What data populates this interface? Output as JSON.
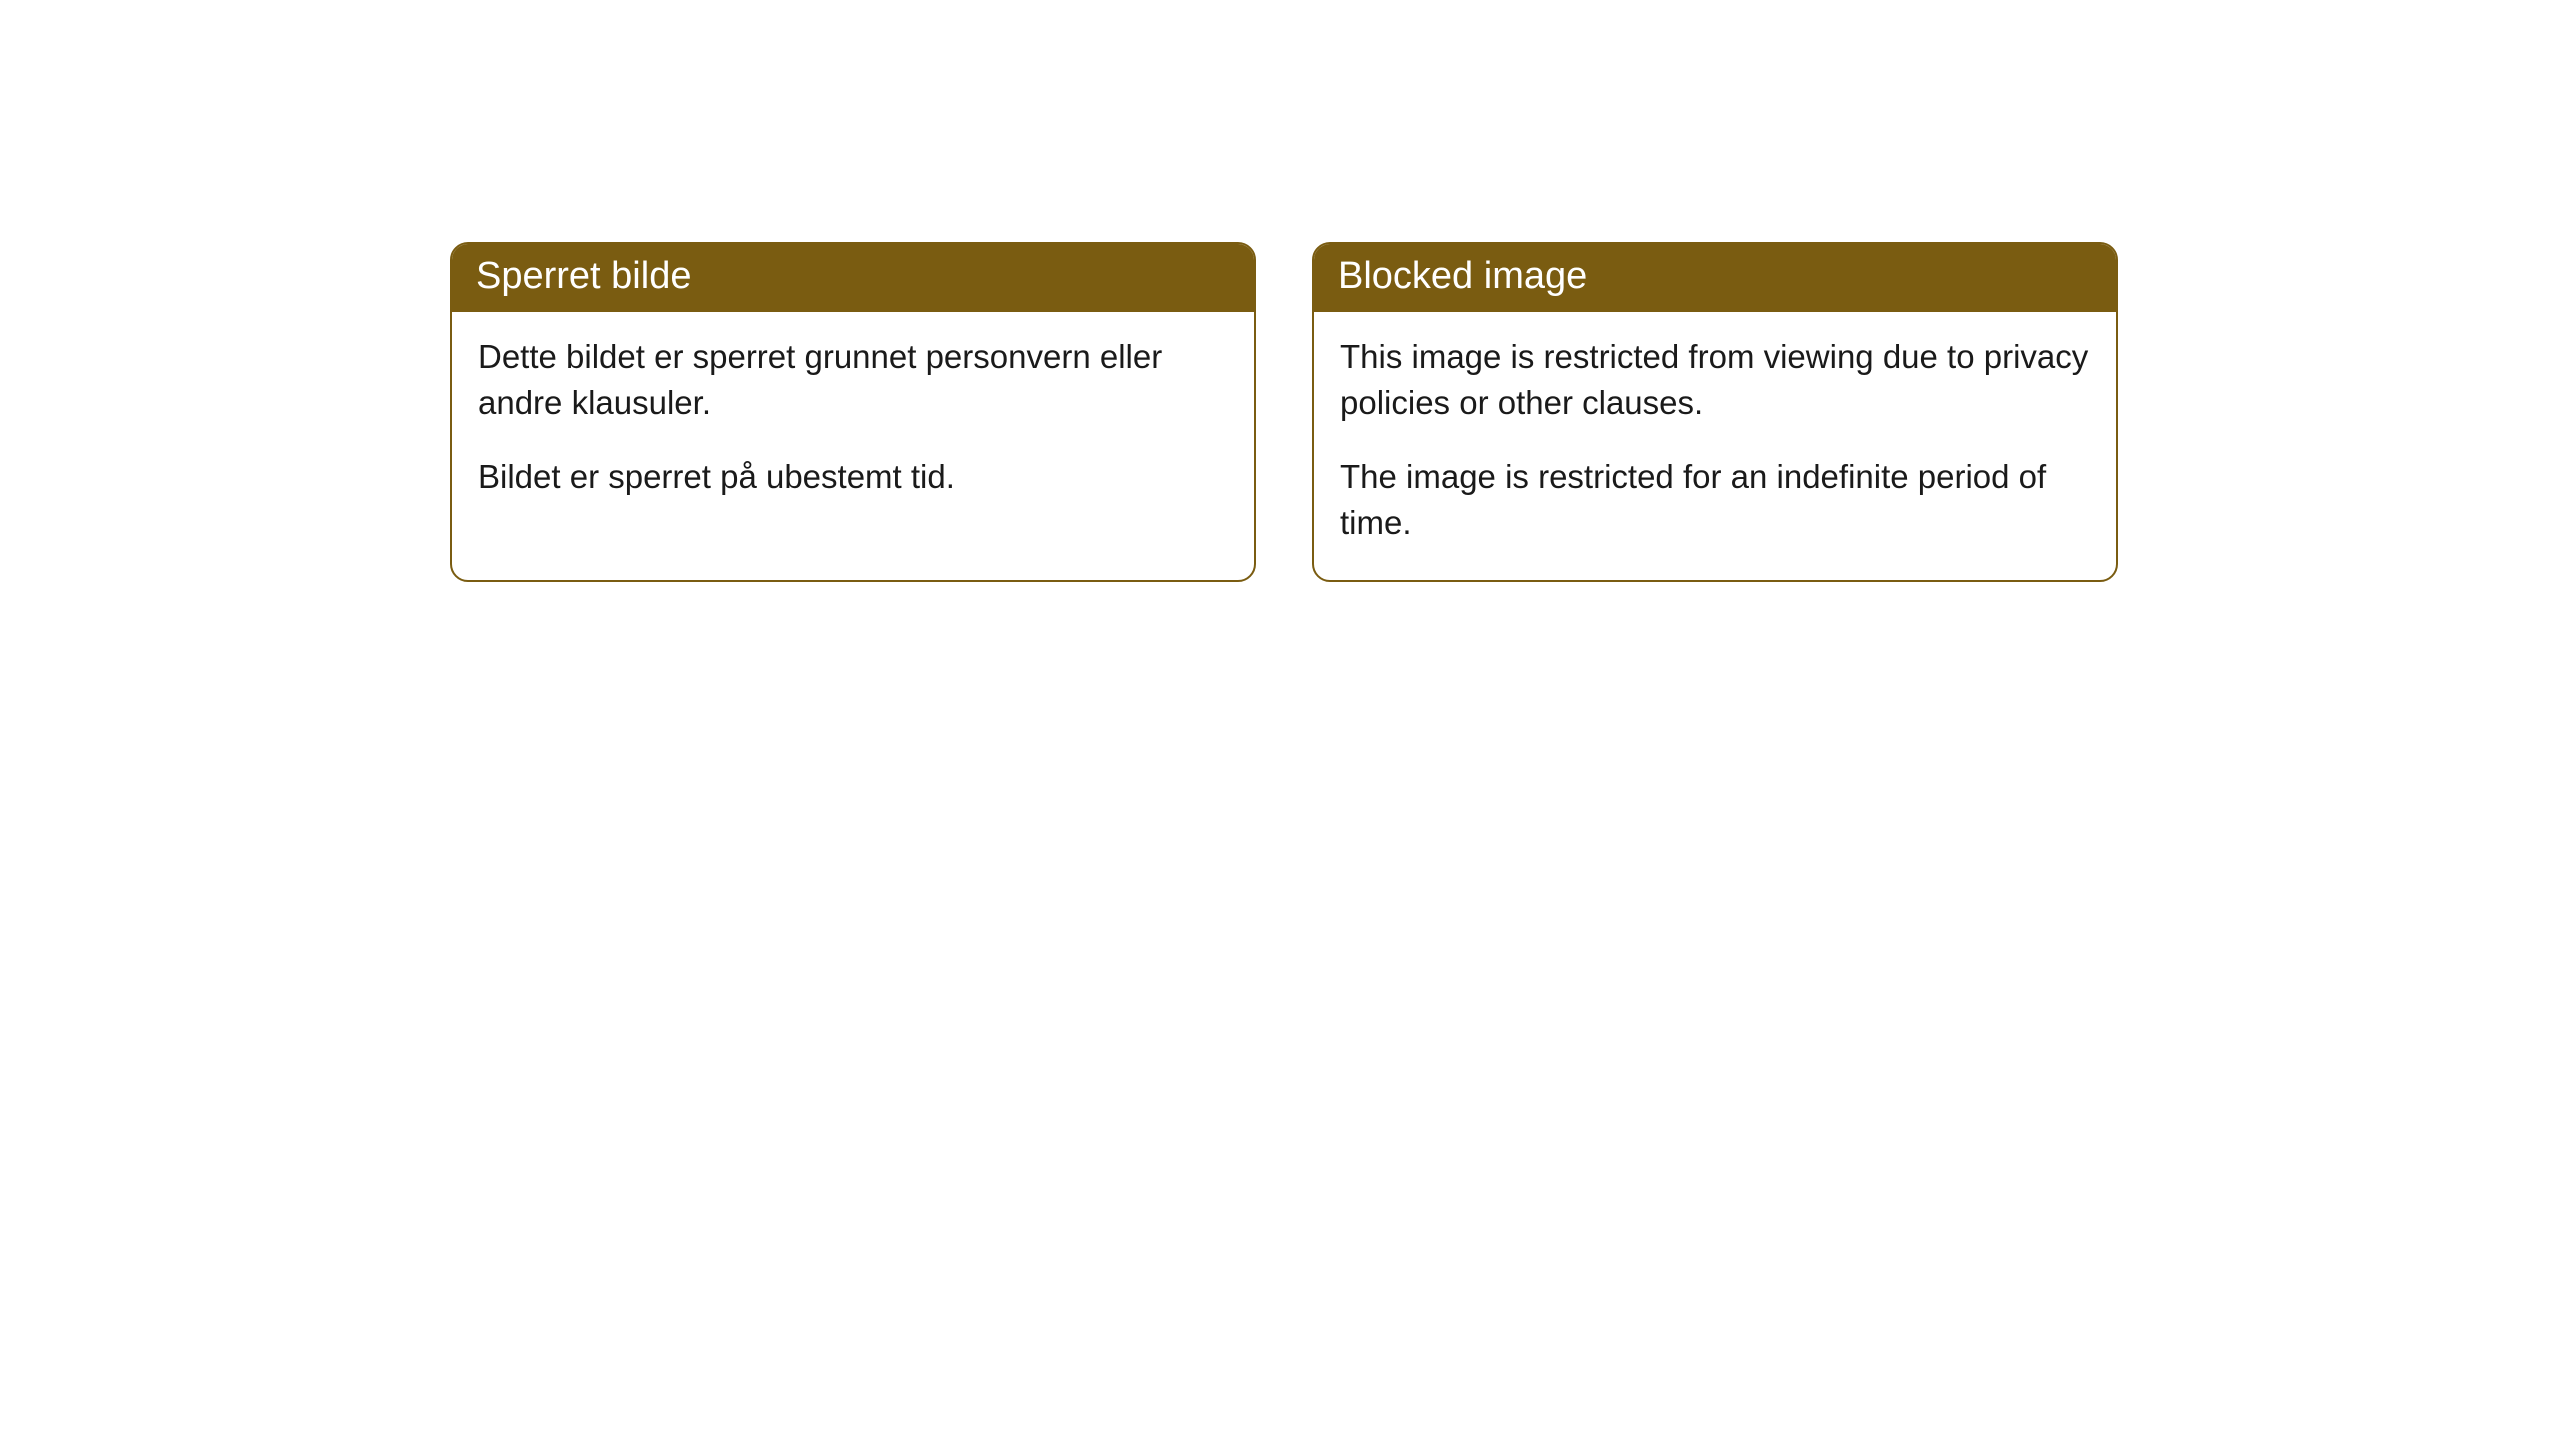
{
  "cards": [
    {
      "title": "Sperret bilde",
      "paragraph1": "Dette bildet er sperret grunnet personvern eller andre klausuler.",
      "paragraph2": "Bildet er sperret på ubestemt tid."
    },
    {
      "title": "Blocked image",
      "paragraph1": "This image is restricted from viewing due to privacy policies or other clauses.",
      "paragraph2": "The image is restricted for an indefinite period of time."
    }
  ],
  "style": {
    "header_background": "#7a5c11",
    "header_text_color": "#ffffff",
    "border_color": "#7a5c11",
    "body_background": "#ffffff",
    "body_text_color": "#1a1a1a",
    "border_radius": 18,
    "header_fontsize": 38,
    "body_fontsize": 33
  }
}
